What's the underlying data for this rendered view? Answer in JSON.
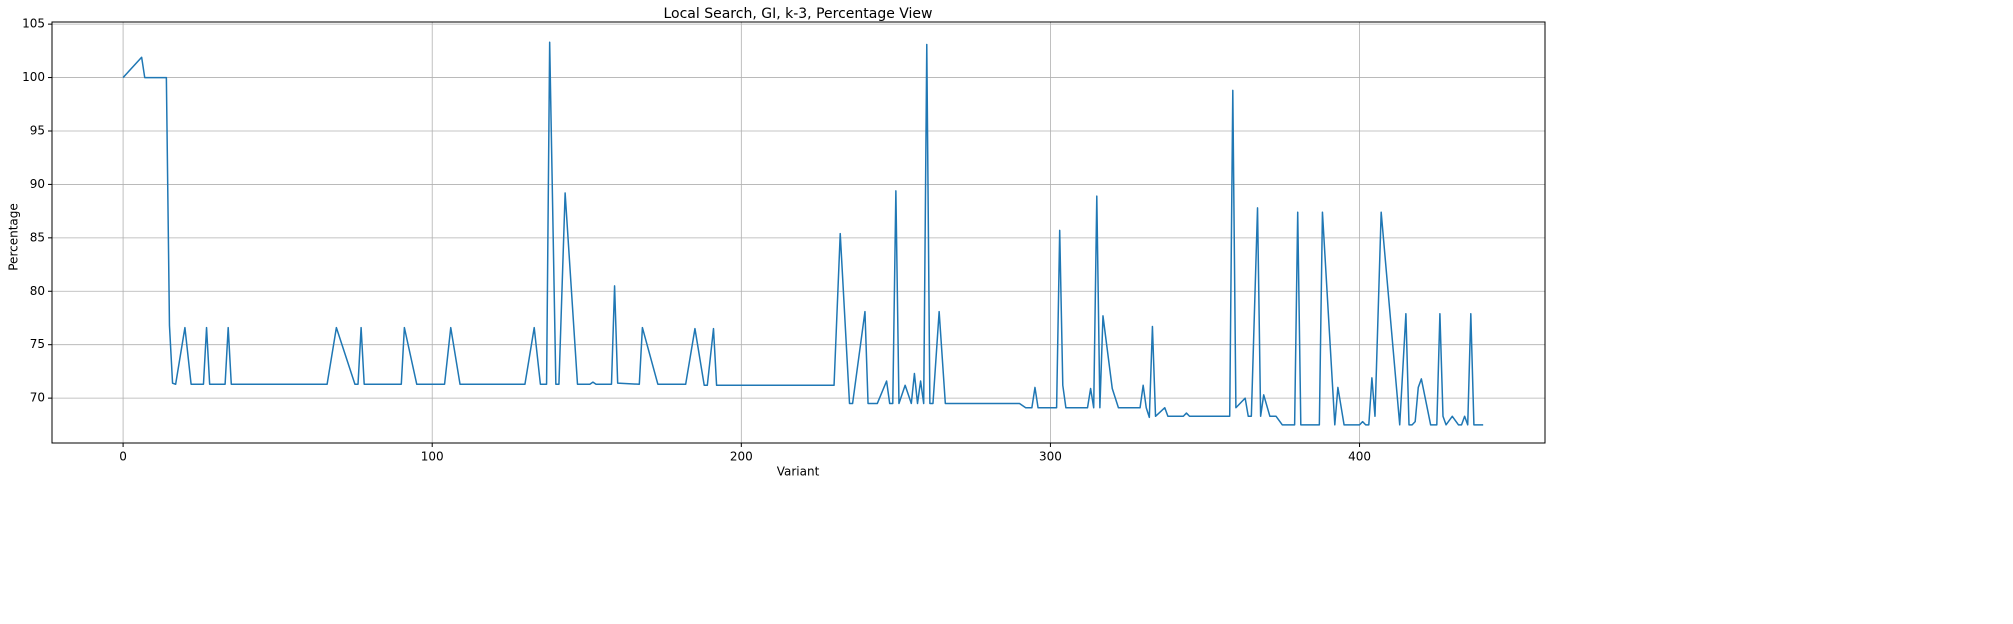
{
  "chart_data": {
    "type": "line",
    "title": "Local Search, GI, k-3, Percentage View",
    "xlabel": "Variant",
    "ylabel": "Percentage",
    "xlim": [
      -23,
      460
    ],
    "ylim": [
      65.8,
      105.2
    ],
    "xticks": [
      0,
      100,
      200,
      300,
      400
    ],
    "yticks": [
      70,
      75,
      80,
      85,
      90,
      95,
      100,
      105
    ],
    "grid": true,
    "x": [
      0,
      6,
      7,
      14,
      15,
      16,
      17,
      20,
      22,
      26,
      27,
      28,
      33,
      34,
      35,
      66,
      69,
      75,
      76,
      77,
      78,
      90,
      91,
      95,
      104,
      106,
      109,
      130,
      133,
      135,
      137,
      138,
      140,
      141,
      143,
      147,
      151,
      152,
      153,
      158,
      159,
      160,
      167,
      168,
      173,
      182,
      185,
      188,
      189,
      191,
      192,
      230,
      232,
      235,
      236,
      240,
      241,
      244,
      247,
      248,
      249,
      250,
      251,
      253,
      255,
      256,
      257,
      258,
      259,
      260,
      261,
      262,
      264,
      266,
      290,
      292,
      294,
      295,
      296,
      302,
      303,
      304,
      305,
      306,
      312,
      313,
      314,
      315,
      316,
      317,
      320,
      322,
      329,
      330,
      331,
      332,
      333,
      334,
      337,
      338,
      343,
      344,
      345,
      358,
      359,
      360,
      363,
      364,
      365,
      367,
      368,
      369,
      371,
      373,
      375,
      379,
      380,
      381,
      387,
      388,
      392,
      393,
      395,
      400,
      401,
      402,
      403,
      404,
      405,
      407,
      413,
      415,
      416,
      417,
      418,
      419,
      420,
      423,
      425,
      426,
      427,
      428,
      430,
      432,
      433,
      434,
      435,
      436,
      437,
      440
    ],
    "series": [
      {
        "color": "#1f77b4",
        "values": [
          100,
          101.9,
          100,
          100,
          76.8,
          71.4,
          71.3,
          76.6,
          71.3,
          71.3,
          76.6,
          71.3,
          71.3,
          76.6,
          71.3,
          71.3,
          76.6,
          71.3,
          71.3,
          76.6,
          71.3,
          71.3,
          76.6,
          71.3,
          71.3,
          76.6,
          71.3,
          71.3,
          76.6,
          71.3,
          71.3,
          103.3,
          71.3,
          71.3,
          89.2,
          71.3,
          71.3,
          71.5,
          71.3,
          71.3,
          80.5,
          71.4,
          71.3,
          76.6,
          71.3,
          71.3,
          76.5,
          71.2,
          71.2,
          76.5,
          71.2,
          71.2,
          85.4,
          69.5,
          69.5,
          78.1,
          69.5,
          69.5,
          71.6,
          69.5,
          69.5,
          89.4,
          69.5,
          71.2,
          69.5,
          72.3,
          69.5,
          71.6,
          69.5,
          103.1,
          69.5,
          69.5,
          78.1,
          69.5,
          69.5,
          69.1,
          69.1,
          71.0,
          69.1,
          69.1,
          85.7,
          71.2,
          69.1,
          69.1,
          69.1,
          70.9,
          69.1,
          88.9,
          69.1,
          77.7,
          70.9,
          69.1,
          69.1,
          71.2,
          69.1,
          68.2,
          76.7,
          68.3,
          69.1,
          68.3,
          68.3,
          68.6,
          68.3,
          68.3,
          98.8,
          69.1,
          70.0,
          68.3,
          68.3,
          87.8,
          68.3,
          70.3,
          68.3,
          68.3,
          67.5,
          67.5,
          87.4,
          67.5,
          67.5,
          87.4,
          67.5,
          71.0,
          67.5,
          67.5,
          67.8,
          67.5,
          67.5,
          71.9,
          68.3,
          87.4,
          67.5,
          77.9,
          67.5,
          67.5,
          67.8,
          71.0,
          71.8,
          67.5,
          67.5,
          77.9,
          68.3,
          67.5,
          68.3,
          67.5,
          67.5,
          68.3,
          67.5,
          77.9,
          67.5,
          67.5
        ]
      }
    ]
  }
}
